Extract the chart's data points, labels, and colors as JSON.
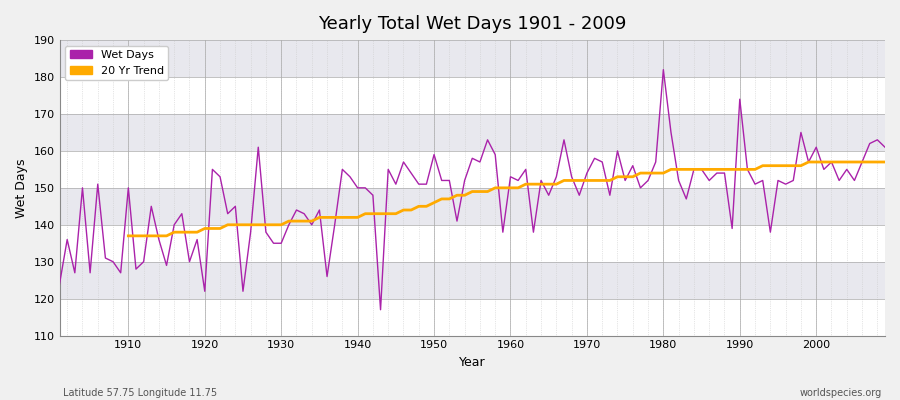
{
  "title": "Yearly Total Wet Days 1901 - 2009",
  "xlabel": "Year",
  "ylabel": "Wet Days",
  "subtitle_left": "Latitude 57.75 Longitude 11.75",
  "subtitle_right": "worldspecies.org",
  "ylim": [
    110,
    190
  ],
  "xlim": [
    1901,
    2009
  ],
  "yticks": [
    110,
    120,
    130,
    140,
    150,
    160,
    170,
    180,
    190
  ],
  "xticks": [
    1910,
    1920,
    1930,
    1940,
    1950,
    1960,
    1970,
    1980,
    1990,
    2000
  ],
  "line_color": "#aa22aa",
  "trend_color": "#ffaa00",
  "background_color": "#f0f0f0",
  "plot_bg_color": "#ffffff",
  "band_color1": "#ffffff",
  "band_color2": "#e8e8ee",
  "wet_days": [
    124,
    136,
    127,
    150,
    127,
    151,
    131,
    130,
    127,
    150,
    128,
    130,
    145,
    136,
    129,
    140,
    143,
    130,
    136,
    122,
    155,
    153,
    143,
    145,
    122,
    138,
    161,
    138,
    135,
    135,
    140,
    144,
    143,
    140,
    144,
    126,
    140,
    155,
    153,
    150,
    150,
    148,
    117,
    155,
    151,
    157,
    154,
    151,
    151,
    159,
    152,
    152,
    141,
    152,
    158,
    157,
    163,
    159,
    138,
    153,
    152,
    155,
    138,
    152,
    148,
    153,
    163,
    153,
    148,
    154,
    158,
    157,
    148,
    160,
    152,
    156,
    150,
    152,
    157,
    182,
    165,
    152,
    147,
    155,
    155,
    152,
    154,
    154,
    139,
    174,
    155,
    151,
    152,
    138,
    152,
    151,
    152,
    165,
    157,
    161,
    155,
    157,
    152,
    155,
    152,
    157,
    162,
    163,
    161
  ],
  "trend": [
    null,
    null,
    null,
    null,
    null,
    null,
    null,
    null,
    null,
    137,
    137,
    137,
    137,
    137,
    137,
    138,
    138,
    138,
    138,
    139,
    139,
    139,
    140,
    140,
    140,
    140,
    140,
    140,
    140,
    140,
    141,
    141,
    141,
    141,
    142,
    142,
    142,
    142,
    142,
    142,
    143,
    143,
    143,
    143,
    143,
    144,
    144,
    145,
    145,
    146,
    147,
    147,
    148,
    148,
    149,
    149,
    149,
    150,
    150,
    150,
    150,
    151,
    151,
    151,
    151,
    151,
    152,
    152,
    152,
    152,
    152,
    152,
    152,
    153,
    153,
    153,
    154,
    154,
    154,
    154,
    155,
    155,
    155,
    155,
    155,
    155,
    155,
    155,
    155,
    155,
    155,
    155,
    156,
    156,
    156,
    156,
    156,
    156,
    157,
    157,
    157,
    157,
    157,
    157,
    157,
    157,
    157,
    157,
    157
  ]
}
